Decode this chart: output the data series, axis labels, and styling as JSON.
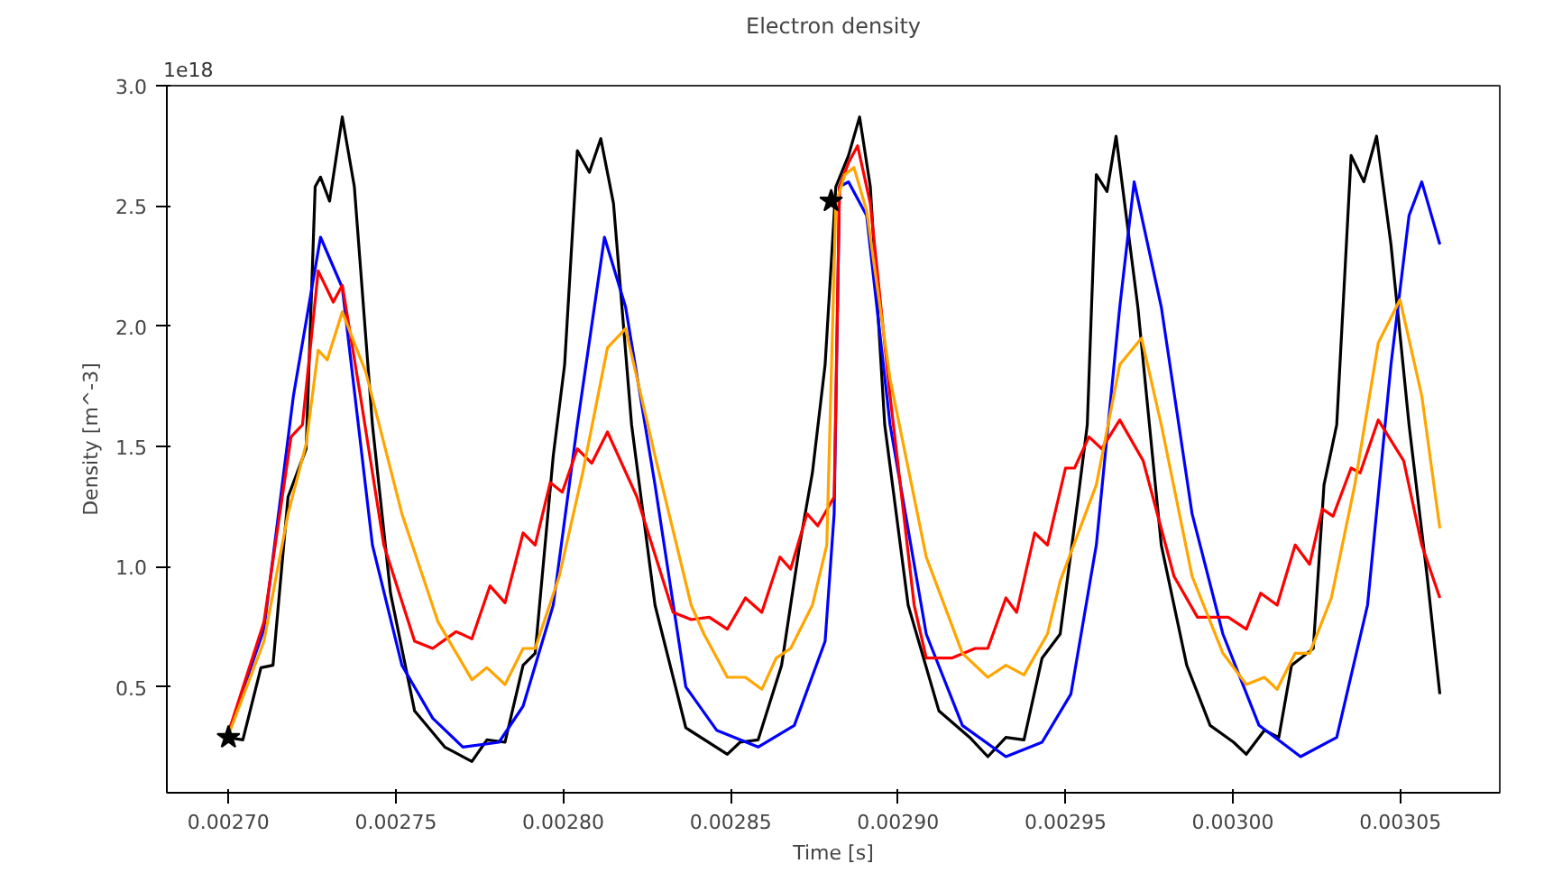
{
  "chart_data": {
    "type": "line",
    "title": "Electron density",
    "xlabel": "Time [s]",
    "ylabel": "Density [m^-3]",
    "annotations": [
      "1e18"
    ],
    "xlim": [
      0.0026816,
      0.0030797
    ],
    "ylim": [
      0.06,
      3.0
    ],
    "xticks": [
      {
        "value": 0.0027,
        "label": "0.00270"
      },
      {
        "value": 0.00275,
        "label": "0.00275"
      },
      {
        "value": 0.0028,
        "label": "0.00280"
      },
      {
        "value": 0.00285,
        "label": "0.00285"
      },
      {
        "value": 0.0029,
        "label": "0.00290"
      },
      {
        "value": 0.00295,
        "label": "0.00295"
      },
      {
        "value": 0.003,
        "label": "0.00300"
      },
      {
        "value": 0.00305,
        "label": "0.00305"
      }
    ],
    "yticks": [
      0.5,
      {
        "value": 1.0,
        "label": "1.0"
      },
      1.5,
      {
        "value": 2.0,
        "label": "2.0"
      },
      2.5,
      {
        "value": 3.0,
        "label": "3.0"
      }
    ],
    "grid": false,
    "line_style": "solid",
    "marker": "none",
    "series": [
      {
        "color": "#000000",
        "x": [
          0.0027,
          0.0027043,
          0.0027097,
          0.0027133,
          0.0027178,
          0.0027232,
          0.0027259,
          0.0027275,
          0.0027302,
          0.002734,
          0.0027376,
          0.002743,
          0.0027484,
          0.0027556,
          0.0027646,
          0.0027727,
          0.0027772,
          0.0027826,
          0.002788,
          0.0027916,
          0.002797,
          0.0028004,
          0.0028042,
          0.0028078,
          0.0028112,
          0.002815,
          0.0028204,
          0.0028274,
          0.0028366,
          0.002849,
          0.0028528,
          0.0028582,
          0.0028652,
          0.0028706,
          0.0028744,
          0.0028782,
          0.0028814,
          0.0028852,
          0.0028885,
          0.0028917,
          0.002896,
          0.002903,
          0.0029122,
          0.0029214,
          0.0029268,
          0.0029322,
          0.0029376,
          0.002943,
          0.0029484,
          0.0029538,
          0.0029565,
          0.0029592,
          0.0029624,
          0.0029651,
          0.0029716,
          0.0029786,
          0.0029862,
          0.0029932,
          0.0030002,
          0.003004,
          0.0030094,
          0.0030137,
          0.0030175,
          0.003024,
          0.0030272,
          0.003031,
          0.0030353,
          0.0030391,
          0.0030429,
          0.0030472,
          0.0030526,
          0.003058,
          0.0030618
        ],
        "values": [
          0.29,
          0.28,
          0.58,
          0.59,
          1.29,
          1.49,
          2.58,
          2.62,
          2.52,
          2.87,
          2.58,
          1.59,
          0.89,
          0.4,
          0.25,
          0.19,
          0.28,
          0.27,
          0.59,
          0.64,
          1.46,
          1.84,
          2.73,
          2.64,
          2.78,
          2.51,
          1.59,
          0.84,
          0.33,
          0.22,
          0.27,
          0.28,
          0.59,
          1.09,
          1.39,
          1.84,
          2.58,
          2.71,
          2.87,
          2.58,
          1.59,
          0.84,
          0.4,
          0.29,
          0.21,
          0.29,
          0.28,
          0.62,
          0.72,
          1.29,
          1.59,
          2.63,
          2.56,
          2.79,
          2.08,
          1.09,
          0.59,
          0.34,
          0.27,
          0.22,
          0.32,
          0.29,
          0.59,
          0.66,
          1.34,
          1.59,
          2.71,
          2.6,
          2.79,
          2.34,
          1.59,
          0.96,
          0.47
        ]
      },
      {
        "color": "#0000ff",
        "x": [
          0.0027,
          0.0027106,
          0.0027194,
          0.0027275,
          0.002734,
          0.002743,
          0.0027518,
          0.002761,
          0.00277,
          0.0027808,
          0.002788,
          0.002797,
          0.0028042,
          0.0028123,
          0.0028186,
          0.0028274,
          0.0028366,
          0.0028458,
          0.0028582,
          0.002869,
          0.0028782,
          0.0028809,
          0.0028825,
          0.0028852,
          0.0028906,
          0.0028976,
          0.0029084,
          0.0029192,
          0.0029322,
          0.002943,
          0.0029516,
          0.0029592,
          0.0029662,
          0.0029705,
          0.0029786,
          0.0029878,
          0.002997,
          0.0030078,
          0.0030202,
          0.003031,
          0.0030402,
          0.0030472,
          0.0030526,
          0.0030564,
          0.0030618
        ],
        "values": [
          0.31,
          0.74,
          1.71,
          2.37,
          2.16,
          1.09,
          0.59,
          0.37,
          0.25,
          0.27,
          0.42,
          0.84,
          1.59,
          2.37,
          2.08,
          1.34,
          0.5,
          0.32,
          0.25,
          0.34,
          0.69,
          1.22,
          2.58,
          2.6,
          2.46,
          1.59,
          0.72,
          0.34,
          0.21,
          0.27,
          0.47,
          1.09,
          2.08,
          2.6,
          2.08,
          1.22,
          0.72,
          0.34,
          0.21,
          0.29,
          0.84,
          1.84,
          2.46,
          2.6,
          2.34
        ]
      },
      {
        "color": "#ff0000",
        "x": [
          0.0027,
          0.0027106,
          0.0027187,
          0.0027221,
          0.0027268,
          0.0027313,
          0.002734,
          0.0027394,
          0.0027464,
          0.0027556,
          0.002761,
          0.002768,
          0.0027727,
          0.0027781,
          0.0027826,
          0.002788,
          0.0027916,
          0.0027961,
          0.0027997,
          0.0028042,
          0.0028085,
          0.0028132,
          0.002822,
          0.0028328,
          0.0028382,
          0.0028436,
          0.002849,
          0.0028544,
          0.0028593,
          0.0028647,
          0.0028679,
          0.0028728,
          0.002876,
          0.0028809,
          0.0028825,
          0.0028852,
          0.0028879,
          0.0028917,
          0.0028976,
          0.0029048,
          0.0029084,
          0.002916,
          0.002923,
          0.0029268,
          0.0029322,
          0.0029354,
          0.0029408,
          0.0029446,
          0.00295,
          0.0029527,
          0.002957,
          0.0029608,
          0.0029662,
          0.0029732,
          0.0029824,
          0.0029894,
          0.0029986,
          0.003004,
          0.0030083,
          0.0030132,
          0.0030186,
          0.0030229,
          0.0030267,
          0.0030299,
          0.0030353,
          0.003038,
          0.0030434,
          0.003051,
          0.0030564,
          0.0030618
        ],
        "values": [
          0.31,
          0.77,
          1.54,
          1.59,
          2.23,
          2.1,
          2.17,
          1.71,
          1.09,
          0.69,
          0.66,
          0.73,
          0.7,
          0.92,
          0.85,
          1.14,
          1.09,
          1.35,
          1.31,
          1.49,
          1.43,
          1.56,
          1.29,
          0.81,
          0.78,
          0.79,
          0.74,
          0.87,
          0.81,
          1.04,
          0.99,
          1.22,
          1.17,
          1.29,
          2.58,
          2.68,
          2.75,
          2.51,
          1.71,
          0.84,
          0.62,
          0.62,
          0.66,
          0.66,
          0.87,
          0.81,
          1.14,
          1.09,
          1.41,
          1.41,
          1.54,
          1.49,
          1.61,
          1.44,
          0.96,
          0.79,
          0.79,
          0.74,
          0.89,
          0.84,
          1.09,
          1.01,
          1.24,
          1.21,
          1.41,
          1.39,
          1.61,
          1.44,
          1.09,
          0.87
        ]
      },
      {
        "color": "#ffa500",
        "x": [
          0.0027,
          0.0027106,
          0.0027178,
          0.0027232,
          0.0027268,
          0.0027295,
          0.002734,
          0.0027376,
          0.002741,
          0.0027518,
          0.0027626,
          0.0027727,
          0.0027772,
          0.0027826,
          0.002788,
          0.0027916,
          0.0027988,
          0.0028058,
          0.0028132,
          0.0028186,
          0.0028274,
          0.0028382,
          0.002842,
          0.002849,
          0.0028544,
          0.0028593,
          0.0028636,
          0.0028679,
          0.0028744,
          0.0028787,
          0.0028814,
          0.0028841,
          0.0028868,
          0.0028906,
          0.0028976,
          0.0029084,
          0.0029192,
          0.0029268,
          0.0029322,
          0.0029376,
          0.0029446,
          0.0029484,
          0.0029592,
          0.0029662,
          0.0029727,
          0.0029786,
          0.0029878,
          0.002997,
          0.003004,
          0.0030094,
          0.0030132,
          0.0030186,
          0.0030229,
          0.0030294,
          0.0030364,
          0.0030434,
          0.0030499,
          0.0030564,
          0.0030618
        ],
        "values": [
          0.3,
          0.69,
          1.22,
          1.51,
          1.9,
          1.86,
          2.06,
          1.93,
          1.81,
          1.22,
          0.77,
          0.53,
          0.58,
          0.51,
          0.66,
          0.66,
          0.96,
          1.39,
          1.91,
          1.99,
          1.46,
          0.84,
          0.72,
          0.54,
          0.54,
          0.49,
          0.62,
          0.66,
          0.84,
          1.09,
          2.51,
          2.63,
          2.66,
          2.48,
          1.78,
          1.04,
          0.64,
          0.54,
          0.59,
          0.55,
          0.72,
          0.94,
          1.34,
          1.84,
          1.95,
          1.59,
          0.96,
          0.64,
          0.51,
          0.54,
          0.49,
          0.64,
          0.64,
          0.87,
          1.34,
          1.93,
          2.11,
          1.71,
          1.16
        ]
      },
      {
        "type": "scatter",
        "marker": "star",
        "color": "#000000",
        "x": [
          0.0027,
          0.00288
        ],
        "values": [
          0.29,
          2.52
        ]
      }
    ]
  }
}
